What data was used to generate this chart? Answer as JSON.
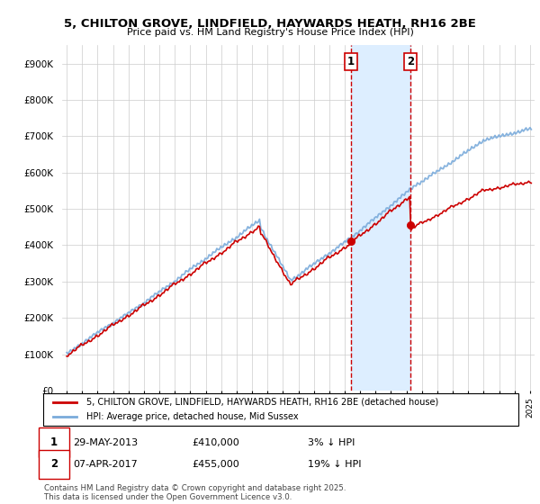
{
  "title": "5, CHILTON GROVE, LINDFIELD, HAYWARDS HEATH, RH16 2BE",
  "subtitle": "Price paid vs. HM Land Registry's House Price Index (HPI)",
  "legend_line1": "5, CHILTON GROVE, LINDFIELD, HAYWARDS HEATH, RH16 2BE (detached house)",
  "legend_line2": "HPI: Average price, detached house, Mid Sussex",
  "transaction1_date": "29-MAY-2013",
  "transaction1_price": 410000,
  "transaction1_note": "3% ↓ HPI",
  "transaction2_date": "07-APR-2017",
  "transaction2_price": 455000,
  "transaction2_note": "19% ↓ HPI",
  "footer": "Contains HM Land Registry data © Crown copyright and database right 2025.\nThis data is licensed under the Open Government Licence v3.0.",
  "hpi_color": "#7aabdb",
  "price_color": "#cc0000",
  "vline_color": "#cc0000",
  "vshade_color": "#ddeeff",
  "background_color": "#ffffff",
  "grid_color": "#cccccc",
  "ylim": [
    0,
    950000
  ],
  "yticks": [
    0,
    100000,
    200000,
    300000,
    400000,
    500000,
    600000,
    700000,
    800000,
    900000
  ],
  "xlabel_start_year": 1995,
  "xlabel_end_year": 2025,
  "t1_year": 2013.41,
  "t2_year": 2017.27,
  "t1_price": 410000,
  "t2_price": 455000,
  "t1_hpi": 422680,
  "t2_hpi": 561728
}
